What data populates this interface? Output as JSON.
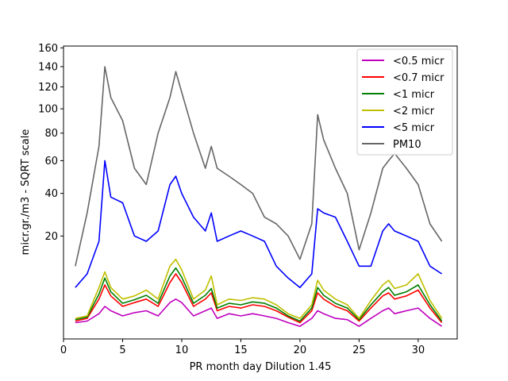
{
  "chart_data": {
    "type": "line",
    "title": "",
    "xlabel": "PR month day  Dilution 1.45",
    "ylabel": "micr.gr./m3 - SQRT scale",
    "y_scale": "sqrt",
    "xlim": [
      0,
      33.3
    ],
    "ylim": [
      0,
      162
    ],
    "x_ticks": [
      0,
      5,
      10,
      15,
      20,
      25,
      30
    ],
    "y_ticks": [
      20,
      40,
      60,
      80,
      100,
      120,
      140,
      160
    ],
    "legend_position": "top-right",
    "grid": false,
    "x": [
      1,
      2,
      3,
      3.5,
      4,
      5,
      6,
      7,
      8,
      9,
      9.5,
      10,
      11,
      12,
      12.5,
      13,
      14,
      15,
      16,
      17,
      18,
      19,
      20,
      21,
      21.5,
      22,
      23,
      24,
      25,
      26,
      27,
      27.5,
      28,
      29,
      30,
      31,
      32
    ],
    "series": [
      {
        "name": "<0.5 micr",
        "color": "#bf00bf",
        "values": [
          0.5,
          0.6,
          1.2,
          2.0,
          1.5,
          1.0,
          1.3,
          1.5,
          1.0,
          2.5,
          3.0,
          2.5,
          1.0,
          1.5,
          1.8,
          0.8,
          1.2,
          1.0,
          1.2,
          1.0,
          0.8,
          0.5,
          0.3,
          0.8,
          1.5,
          1.2,
          0.8,
          0.7,
          0.3,
          0.8,
          1.5,
          1.8,
          1.2,
          1.5,
          1.8,
          0.8,
          0.3
        ]
      },
      {
        "name": "<0.7 micr",
        "color": "#ff0000",
        "values": [
          0.6,
          0.8,
          3.0,
          5.5,
          3.5,
          2.0,
          2.5,
          3.0,
          2.0,
          6.0,
          8.0,
          6.0,
          2.0,
          3.0,
          4.0,
          1.5,
          2.0,
          1.8,
          2.2,
          2.0,
          1.5,
          0.9,
          0.5,
          1.5,
          4.0,
          3.0,
          2.0,
          1.5,
          0.6,
          1.8,
          3.5,
          4.0,
          3.0,
          3.5,
          4.5,
          1.8,
          0.5
        ]
      },
      {
        "name": "<1 micr",
        "color": "#008000",
        "values": [
          0.7,
          0.9,
          3.8,
          7.0,
          4.2,
          2.4,
          2.9,
          3.6,
          2.4,
          7.5,
          9.5,
          7.2,
          2.4,
          3.6,
          4.8,
          1.8,
          2.4,
          2.2,
          2.6,
          2.4,
          1.8,
          1.0,
          0.6,
          1.8,
          5.0,
          3.6,
          2.4,
          1.8,
          0.7,
          2.2,
          4.2,
          5.0,
          3.6,
          4.2,
          5.5,
          2.2,
          0.6
        ]
      },
      {
        "name": "<2 micr",
        "color": "#bfbf00",
        "values": [
          0.8,
          1.0,
          5.0,
          8.5,
          5.0,
          3.0,
          3.5,
          4.5,
          3.0,
          10.0,
          12.0,
          9.0,
          3.0,
          4.5,
          7.5,
          2.2,
          3.0,
          2.8,
          3.2,
          3.0,
          2.2,
          1.2,
          0.8,
          2.2,
          6.5,
          4.5,
          3.0,
          2.2,
          0.8,
          2.8,
          5.5,
          6.5,
          4.8,
          5.5,
          8.0,
          2.8,
          0.8
        ]
      },
      {
        "name": "<5 micr",
        "color": "#0000ff",
        "values": [
          5.0,
          8.0,
          18.0,
          60.0,
          38.0,
          35.0,
          20.0,
          18.0,
          22.0,
          45.0,
          50.0,
          40.0,
          28.0,
          22.0,
          30.0,
          18.0,
          20.0,
          22.0,
          20.0,
          18.0,
          10.0,
          7.0,
          5.0,
          8.0,
          32.0,
          30.0,
          28.0,
          18.0,
          10.0,
          10.0,
          22.0,
          25.0,
          22.0,
          20.0,
          18.0,
          10.0,
          8.0
        ]
      },
      {
        "name": "PM10",
        "color": "#666666",
        "values": [
          10.0,
          30.0,
          70.0,
          140.0,
          110.0,
          90.0,
          55.0,
          45.0,
          80.0,
          110.0,
          135.0,
          115.0,
          80.0,
          55.0,
          70.0,
          55.0,
          50.0,
          45.0,
          40.0,
          28.0,
          25.0,
          20.0,
          12.0,
          25.0,
          95.0,
          75.0,
          55.0,
          40.0,
          15.0,
          30.0,
          55.0,
          60.0,
          65.0,
          55.0,
          45.0,
          25.0,
          18.0
        ]
      }
    ]
  }
}
